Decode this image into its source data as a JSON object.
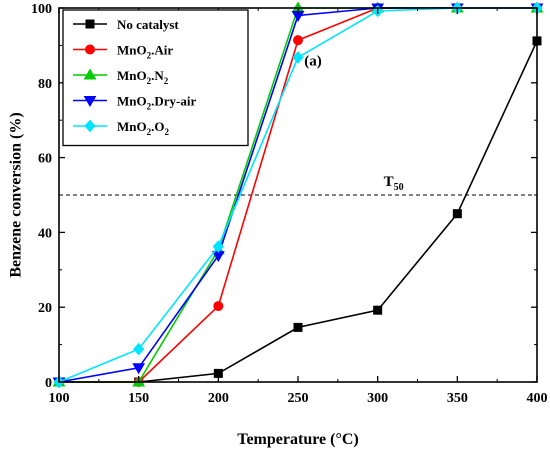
{
  "chart_data": {
    "type": "line",
    "xlabel": "Temperature (°C)",
    "ylabel": "Benzene conversion (%)",
    "xlim": [
      100,
      400
    ],
    "ylim": [
      0,
      100
    ],
    "x_ticks": [
      "100",
      "150",
      "200",
      "250",
      "300",
      "350",
      "400"
    ],
    "y_ticks": [
      "0",
      "20",
      "40",
      "60",
      "80",
      "100"
    ],
    "grid": false,
    "legend_position": "top-left",
    "panel_label": "(a)",
    "reference_line": {
      "y": 50,
      "label_main": "T",
      "label_sub": "50",
      "style": "dashed",
      "color": "#000000"
    },
    "series": [
      {
        "name_main": "No catalyst",
        "name_sub": "",
        "name_tail": "",
        "color": "#000000",
        "marker": "square",
        "x": [
          100,
          150,
          200,
          250,
          300,
          350,
          400
        ],
        "y": [
          0,
          0,
          2.3,
          14.6,
          19.2,
          45,
          91.2
        ]
      },
      {
        "name_main": "MnO",
        "name_sub": "2",
        "name_tail": ".Air",
        "color": "#ff0000",
        "marker": "circle",
        "x": [
          100,
          150,
          200,
          250,
          300,
          350,
          400
        ],
        "y": [
          0,
          0,
          20.3,
          91.4,
          100,
          100,
          100
        ]
      },
      {
        "name_main": "MnO",
        "name_sub": "2",
        "name_tail": ".N",
        "name_tail_sub": "2",
        "color": "#00cc00",
        "marker": "triangle-up",
        "x": [
          100,
          150,
          200,
          250,
          300,
          350,
          400
        ],
        "y": [
          0,
          0,
          35.3,
          100,
          100,
          100,
          100
        ]
      },
      {
        "name_main": "MnO",
        "name_sub": "2",
        "name_tail": ".Dry-air",
        "color": "#0000ff",
        "marker": "triangle-down",
        "x": [
          100,
          150,
          200,
          250,
          300,
          350,
          400
        ],
        "y": [
          0,
          3.8,
          33.8,
          98,
          100,
          100,
          100
        ]
      },
      {
        "name_main": "MnO",
        "name_sub": "2",
        "name_tail": ".O",
        "name_tail_sub": "2",
        "color": "#00e5ff",
        "marker": "diamond",
        "x": [
          100,
          150,
          200,
          250,
          300,
          350,
          400
        ],
        "y": [
          0,
          8.8,
          36.2,
          86.8,
          99.2,
          100,
          100
        ]
      }
    ]
  }
}
